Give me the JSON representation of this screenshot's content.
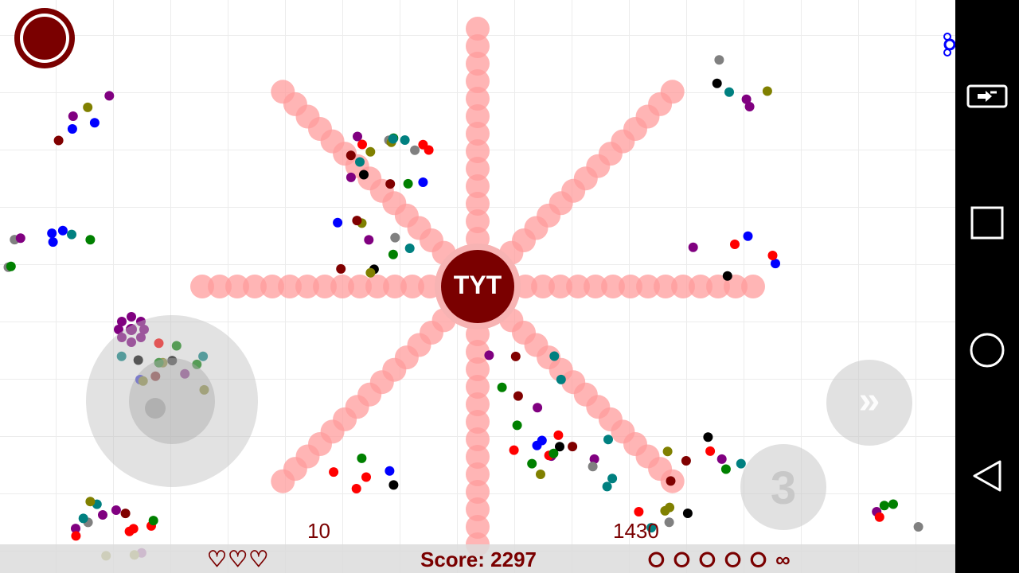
{
  "player": {
    "label": "TYT",
    "color": "#7a0000",
    "halo": "#f7b3b3"
  },
  "hud": {
    "lives": "♡♡♡",
    "score": "Score: 2297",
    "ammo": "⭘ ⭘ ⭘ ⭘ ⭘ ∞",
    "left_counter": "10",
    "right_counter": "1430"
  },
  "controls": {
    "dash_label": "»",
    "bomb_label": "3",
    "record_icon": "record-icon",
    "joystick": "virtual-joystick"
  },
  "navigation_bar": {
    "buttons": [
      "rotate-screen-icon",
      "recents-icon",
      "home-icon",
      "back-icon"
    ]
  },
  "colors": {
    "beam": "#ff9c9c",
    "accent": "#7a0000",
    "enemy_palette": [
      "#ff0000",
      "#0000ff",
      "#008000",
      "#008080",
      "#800080",
      "#800000",
      "#000000",
      "#808000",
      "#808080"
    ]
  }
}
